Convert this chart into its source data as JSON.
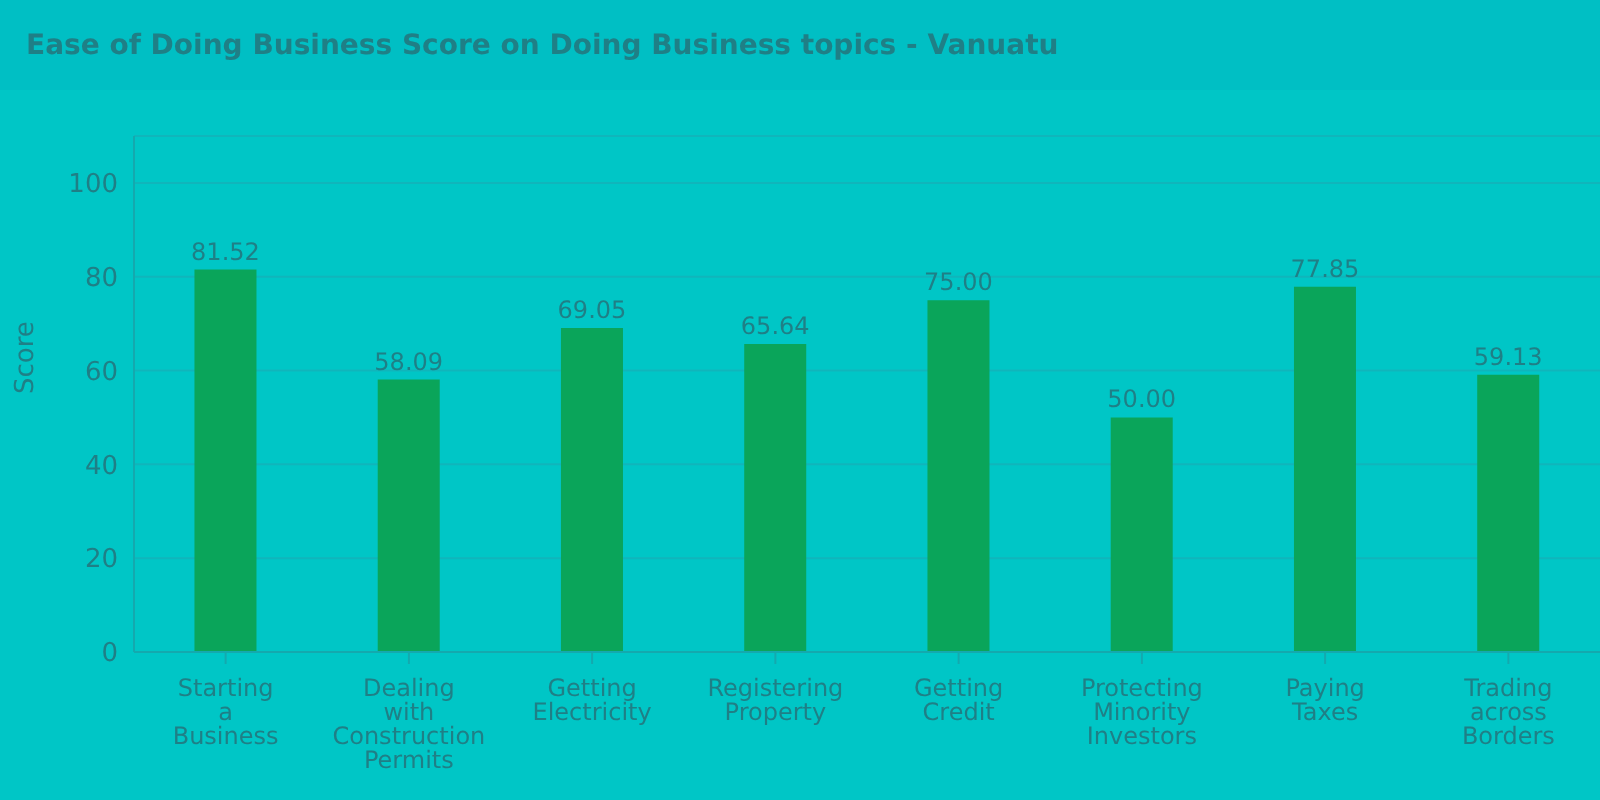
{
  "chart_data": {
    "type": "bar",
    "title": "Ease of Doing Business Score on Doing Business topics - Vanuatu",
    "ylabel": "Score",
    "categories": [
      "Starting a Business",
      "Dealing with Construction Permits",
      "Getting Electricity",
      "Registering Property",
      "Getting Credit",
      "Protecting Minority Investors",
      "Paying Taxes",
      "Trading across Borders"
    ],
    "values": [
      81.52,
      58.09,
      69.05,
      65.64,
      75.0,
      50.0,
      77.85,
      59.13
    ],
    "value_labels": [
      "81.52",
      "58.09",
      "69.05",
      "65.64",
      "75.00",
      "50.00",
      "77.85",
      "59.13"
    ],
    "color": "#0aa55a",
    "ylim": [
      0,
      110
    ],
    "yticks": [
      0,
      20,
      40,
      60,
      80,
      100
    ],
    "grid": "y"
  }
}
